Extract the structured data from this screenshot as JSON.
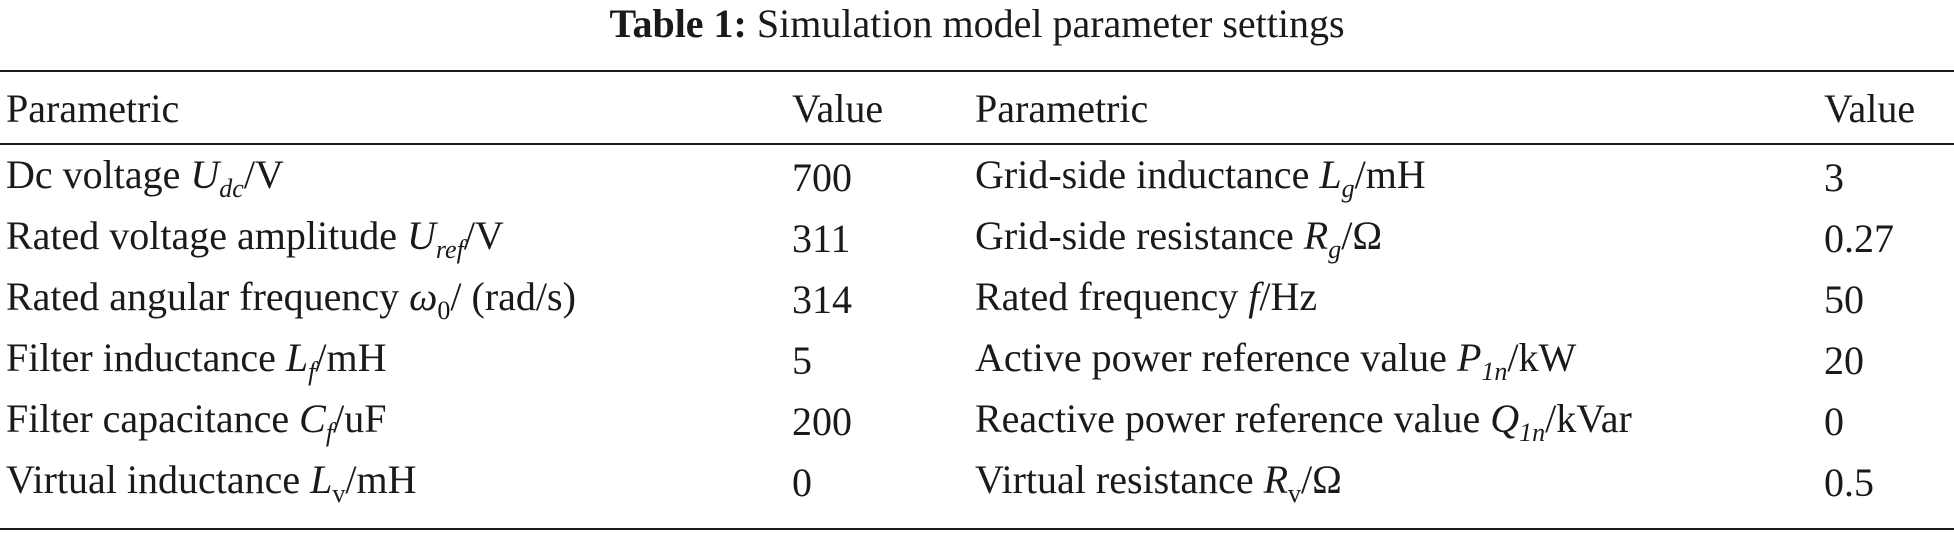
{
  "caption": {
    "label": "Table 1:",
    "text": "Simulation model parameter settings"
  },
  "headers": [
    "Parametric",
    "Value",
    "Parametric",
    "Value"
  ],
  "rows": [
    {
      "p1": {
        "text": "Dc voltage ",
        "sym": "U",
        "sub": "dc",
        "unit": "/V"
      },
      "v1": "700",
      "p2": {
        "text": "Grid-side inductance ",
        "sym": "L",
        "sub": "g",
        "unit": "/mH"
      },
      "v2": "3"
    },
    {
      "p1": {
        "text": "Rated voltage amplitude ",
        "sym": "U",
        "sub": "ref",
        "unit": "/V"
      },
      "v1": "311",
      "p2": {
        "text": "Grid-side resistance ",
        "sym": "R",
        "sub": "g",
        "unit": "/Ω"
      },
      "v2": "0.27"
    },
    {
      "p1": {
        "text": "Rated angular frequency ",
        "sym": "ω",
        "sub": "0",
        "unit": "/ (rad/s)"
      },
      "v1": "314",
      "p2": {
        "text": "Rated frequency ",
        "sym": "f",
        "sub": "",
        "unit": "/Hz"
      },
      "v2": "50"
    },
    {
      "p1": {
        "text": "Filter inductance ",
        "sym": "L",
        "sub": "f",
        "unit": "/mH"
      },
      "v1": "5",
      "p2": {
        "text": "Active power reference value ",
        "sym": "P",
        "sub": "1n",
        "unit": "/kW"
      },
      "v2": "20"
    },
    {
      "p1": {
        "text": "Filter capacitance ",
        "sym": "C",
        "sub": "f",
        "unit": "/uF"
      },
      "v1": "200",
      "p2": {
        "text": "Reactive power reference value ",
        "sym": "Q",
        "sub": "1n",
        "unit": "/kVar"
      },
      "v2": "0"
    },
    {
      "p1": {
        "text": "Virtual inductance ",
        "sym": "L",
        "sub": "v",
        "unit": "/mH"
      },
      "v1": "0",
      "p2": {
        "text": "Virtual resistance ",
        "sym": "R",
        "sub": "v",
        "unit": "/Ω"
      },
      "v2": "0.5"
    }
  ]
}
